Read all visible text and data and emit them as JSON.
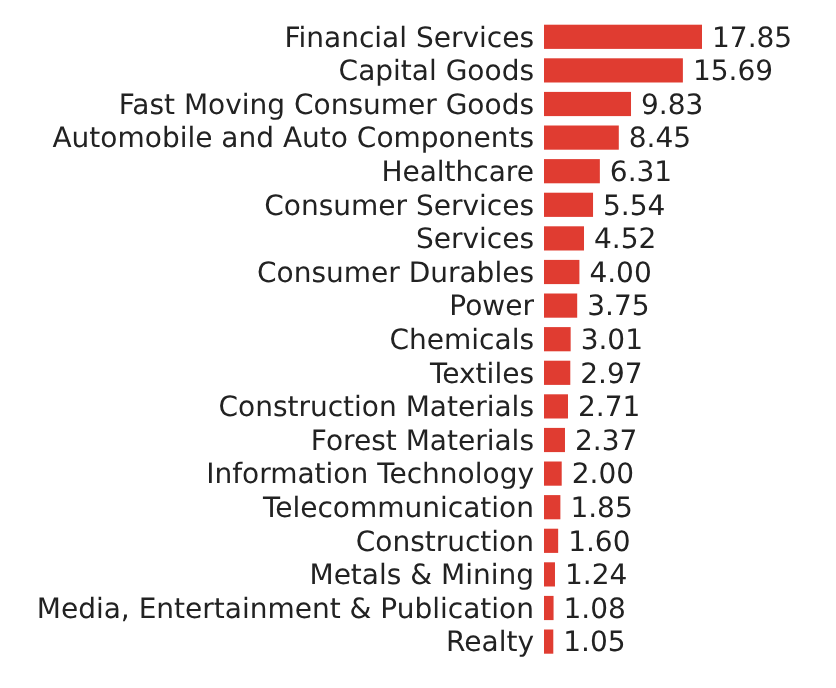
{
  "chart_data": {
    "type": "bar",
    "orientation": "horizontal",
    "data_labels": true,
    "color": "#e03c31",
    "categories": [
      "Financial Services",
      "Capital Goods",
      "Fast Moving Consumer Goods",
      "Automobile and Auto Components",
      "Healthcare",
      "Consumer Services",
      "Services",
      "Consumer Durables",
      "Power",
      "Chemicals",
      "Textiles",
      "Construction Materials",
      "Forest Materials",
      "Information Technology",
      "Telecommunication",
      "Construction",
      "Metals & Mining",
      "Media, Entertainment & Publication",
      "Realty"
    ],
    "values": [
      17.85,
      15.69,
      9.83,
      8.45,
      6.31,
      5.54,
      4.52,
      4.0,
      3.75,
      3.01,
      2.97,
      2.71,
      2.37,
      2.0,
      1.85,
      1.6,
      1.24,
      1.08,
      1.05
    ],
    "value_labels": [
      "17.85",
      "15.69",
      "9.83",
      "8.45",
      "6.31",
      "5.54",
      "4.52",
      "4.00",
      "3.75",
      "3.01",
      "2.97",
      "2.71",
      "2.37",
      "2.00",
      "1.85",
      "1.60",
      "1.24",
      "1.08",
      "1.05"
    ]
  }
}
